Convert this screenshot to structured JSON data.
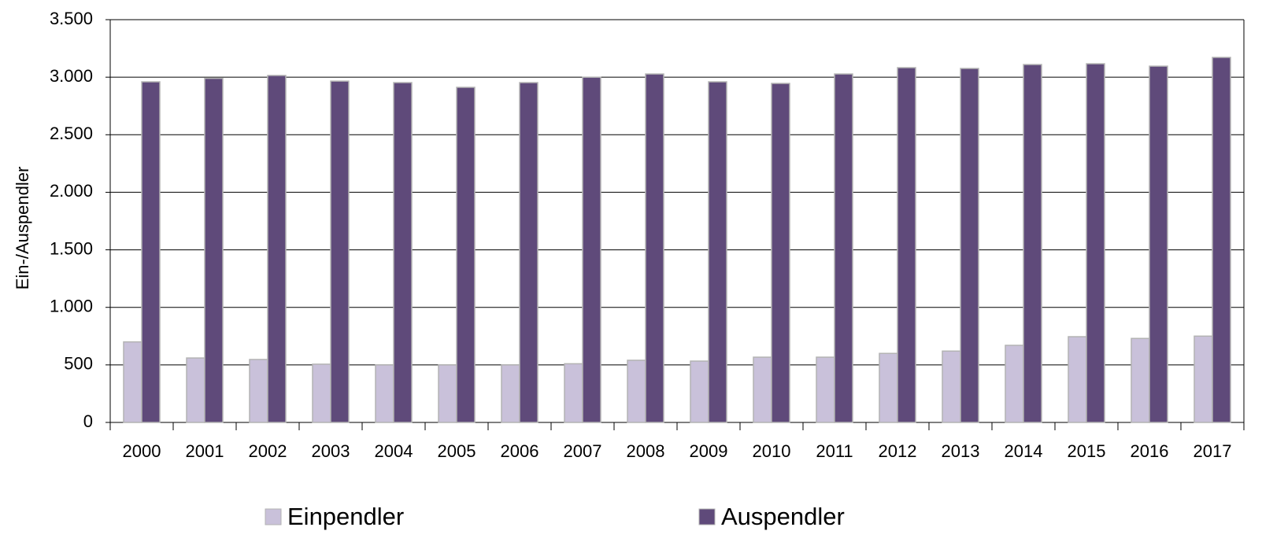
{
  "chart_data": {
    "type": "bar",
    "y_label": "Ein-/Auspendler",
    "categories": [
      "2000",
      "2001",
      "2002",
      "2003",
      "2004",
      "2005",
      "2006",
      "2007",
      "2008",
      "2009",
      "2010",
      "2011",
      "2012",
      "2013",
      "2014",
      "2015",
      "2016",
      "2017"
    ],
    "series": [
      {
        "name": "Einpendler",
        "color": "#c9c1da",
        "values": [
          700,
          560,
          547,
          506,
          500,
          500,
          500,
          510,
          540,
          533,
          567,
          567,
          600,
          620,
          670,
          745,
          730,
          750
        ]
      },
      {
        "name": "Auspendler",
        "color": "#5f4a7a",
        "values": [
          2960,
          2990,
          3015,
          2966,
          2953,
          2912,
          2953,
          3000,
          3028,
          2960,
          2946,
          3028,
          3083,
          3076,
          3110,
          3117,
          3096,
          3172
        ]
      }
    ],
    "ylim": [
      0,
      3500
    ],
    "yticks": [
      0,
      500,
      {
        "value": 1000,
        "label": "1.000"
      },
      {
        "value": 1500,
        "label": "1.500"
      },
      {
        "value": 2000,
        "label": "2.000"
      },
      {
        "value": 2500,
        "label": "2.500"
      },
      {
        "value": 3000,
        "label": "3.000"
      },
      {
        "value": 3500,
        "label": "3.500"
      }
    ],
    "grid": true
  }
}
